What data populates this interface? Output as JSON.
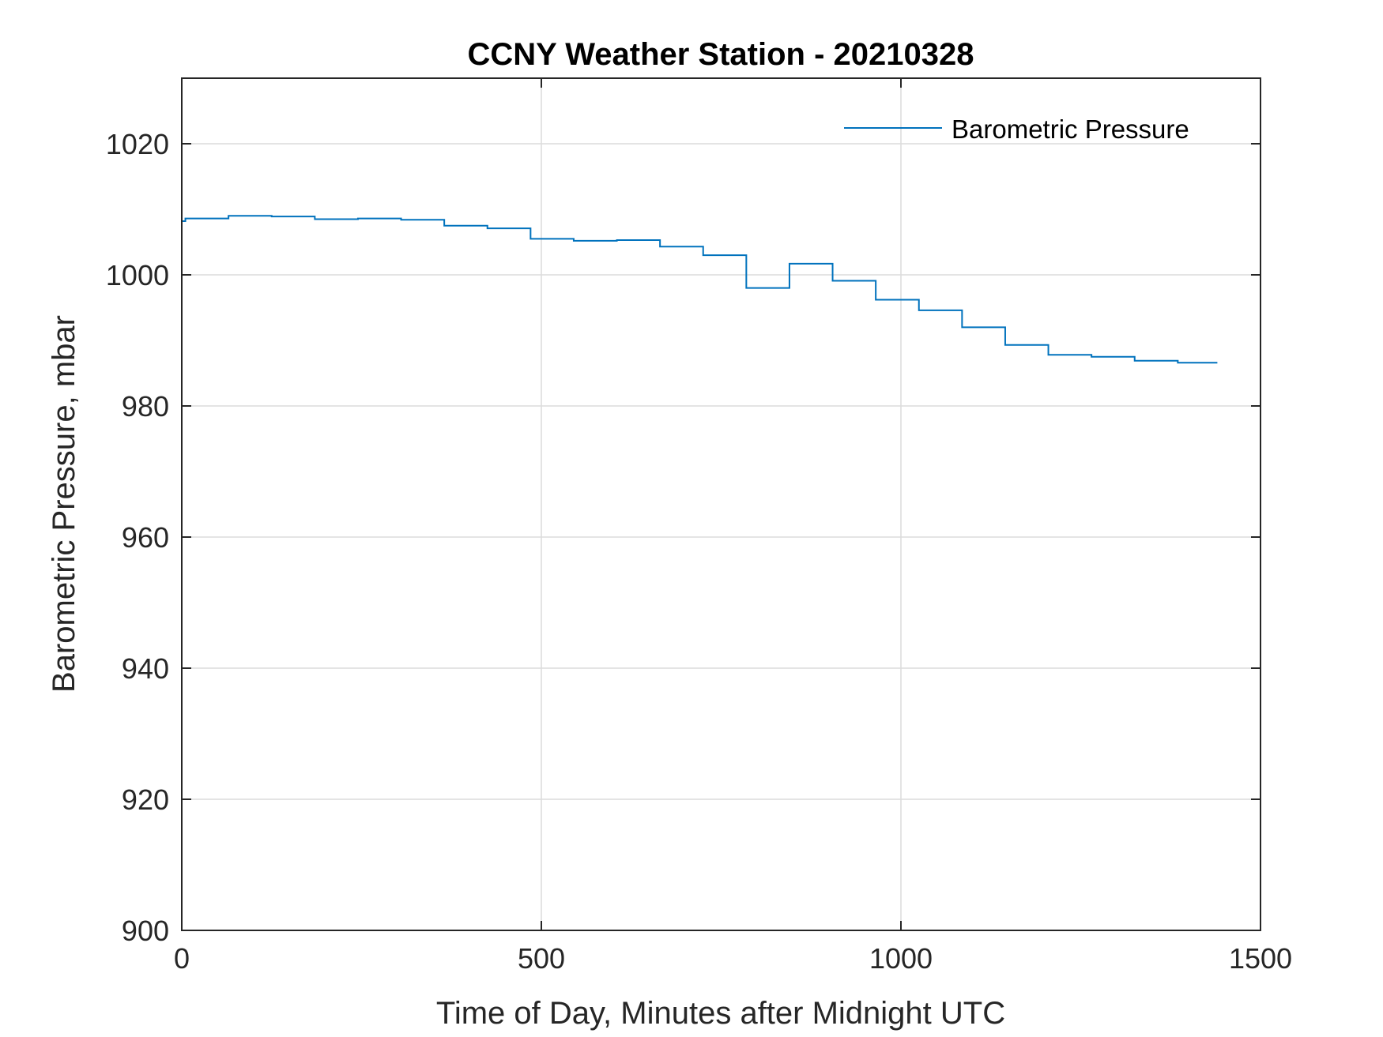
{
  "colors": {
    "series": "#0072BD",
    "axis": "#262626",
    "grid": "#dcdcdc"
  },
  "chart_data": {
    "type": "line",
    "title": "CCNY Weather Station - 20210328",
    "xlabel": "Time of Day, Minutes after Midnight UTC",
    "ylabel": "Barometric Pressure, mbar",
    "xlim": [
      0,
      1500
    ],
    "ylim": [
      900,
      1030
    ],
    "xticks": [
      0,
      500,
      1000,
      1500
    ],
    "yticks": [
      900,
      920,
      940,
      960,
      980,
      1000,
      1020
    ],
    "xtick_labels": [
      "0",
      "500",
      "1000",
      "1500"
    ],
    "ytick_labels": [
      "900",
      "920",
      "940",
      "960",
      "980",
      "1000",
      "1020"
    ],
    "grid": true,
    "legend_position": "top-right",
    "series": [
      {
        "name": "Barometric Pressure",
        "step": true,
        "x": [
          0,
          5,
          65,
          125,
          185,
          245,
          305,
          365,
          425,
          485,
          545,
          605,
          665,
          725,
          785,
          845,
          905,
          965,
          1025,
          1085,
          1145,
          1205,
          1265,
          1325,
          1385,
          1440
        ],
        "y": [
          1008.2,
          1008.6,
          1009.0,
          1008.9,
          1008.5,
          1008.6,
          1008.4,
          1007.5,
          1007.1,
          1005.5,
          1005.2,
          1005.3,
          1004.3,
          1003.0,
          998.0,
          1001.7,
          999.1,
          996.2,
          994.6,
          992.0,
          989.3,
          987.8,
          987.5,
          986.9,
          986.6,
          986.6
        ]
      }
    ]
  }
}
